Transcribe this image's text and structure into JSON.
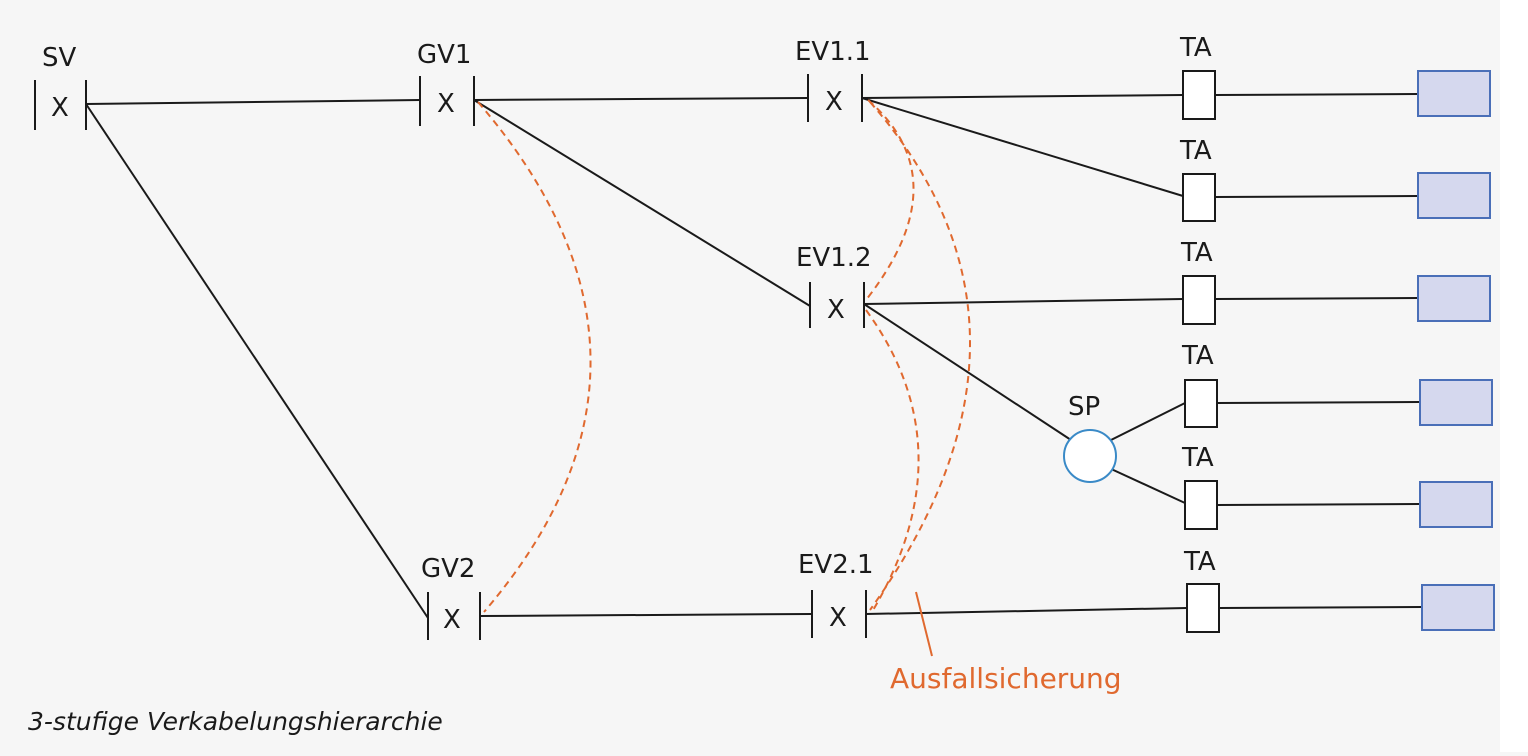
{
  "colors": {
    "line": "#1a1a1a",
    "failover": "#e0692f",
    "device_fill": "#d5d8ee",
    "device_border": "#4a6fb8",
    "splitter_border": "#3a8ac7",
    "caption_text": "#1a1a1a",
    "callout_text": "#e0692f"
  },
  "diagram": {
    "sv": {
      "label": "SV",
      "mark": "X"
    },
    "gv1": {
      "label": "GV1",
      "mark": "X"
    },
    "gv2": {
      "label": "GV2",
      "mark": "X"
    },
    "ev11": {
      "label": "EV1.1",
      "mark": "X"
    },
    "ev12": {
      "label": "EV1.2",
      "mark": "X"
    },
    "ev21": {
      "label": "EV2.1",
      "mark": "X"
    },
    "sp": {
      "label": "SP"
    },
    "ta_label": "TA",
    "failover_label": "Ausfallsicherung"
  },
  "caption": "3-stufige Verkabelungshierarchie"
}
